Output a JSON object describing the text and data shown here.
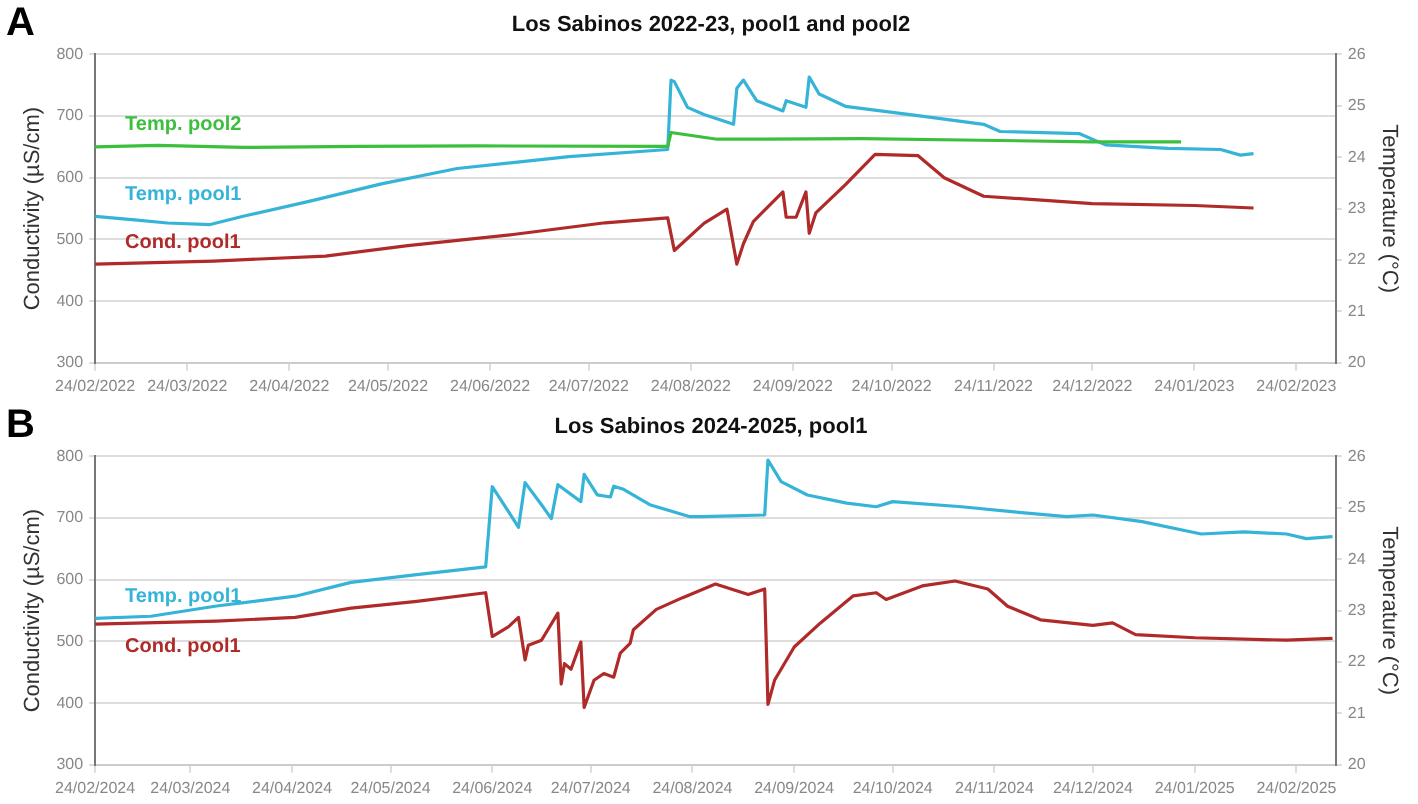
{
  "chart_data": [
    {
      "type": "line",
      "title": "Los Sabinos 2022-23, pool1 and pool2",
      "ylabel": "Conductivity (µS/cm)",
      "y2label": "Temperature (°C)",
      "annotations": [
        "A"
      ],
      "grid": "y",
      "marker": "none",
      "line_style": "solid",
      "xlim": [
        "2022-02-24",
        "2023-03-08"
      ],
      "xticks": [
        {
          "value": "2022-02-24",
          "label": "24/02/2022"
        },
        {
          "value": "2022-03-24",
          "label": "24/03/2022"
        },
        {
          "value": "2022-04-24",
          "label": "24/04/2022"
        },
        {
          "value": "2022-05-24",
          "label": "24/05/2022"
        },
        {
          "value": "2022-06-24",
          "label": "24/06/2022"
        },
        {
          "value": "2022-07-24",
          "label": "24/07/2022"
        },
        {
          "value": "2022-08-24",
          "label": "24/08/2022"
        },
        {
          "value": "2022-09-24",
          "label": "24/09/2022"
        },
        {
          "value": "2022-10-24",
          "label": "24/10/2022"
        },
        {
          "value": "2022-11-24",
          "label": "24/11/2022"
        },
        {
          "value": "2022-12-24",
          "label": "24/12/2022"
        },
        {
          "value": "2023-01-24",
          "label": "24/01/2023"
        },
        {
          "value": "2023-02-24",
          "label": "24/02/2023"
        }
      ],
      "ylim": [
        300,
        800
      ],
      "yticks": [
        300,
        400,
        500,
        600,
        700,
        800
      ],
      "y2lim": [
        20,
        26
      ],
      "y2ticks": [
        20,
        21,
        22,
        23,
        24,
        25,
        26
      ],
      "series": [
        {
          "name": "Temp. pool2",
          "color": "#3cbf3c",
          "axis": "y2",
          "x": [
            "2022-02-24",
            "2022-03-15",
            "2022-04-10",
            "2022-05-15",
            "2022-06-20",
            "2022-08-17",
            "2022-08-18",
            "2022-09-01",
            "2022-10-15",
            "2022-11-20",
            "2022-12-24",
            "2023-01-20"
          ],
          "values": [
            24.2,
            24.23,
            24.19,
            24.21,
            24.22,
            24.21,
            24.48,
            24.35,
            24.36,
            24.33,
            24.3,
            24.3
          ]
        },
        {
          "name": "Temp. pool1",
          "color": "#35b4d8",
          "axis": "y2",
          "x": [
            "2022-02-24",
            "2022-03-08",
            "2022-03-18",
            "2022-03-31",
            "2022-04-10",
            "2022-04-30",
            "2022-05-22",
            "2022-06-14",
            "2022-07-18",
            "2022-08-17",
            "2022-08-18",
            "2022-08-19",
            "2022-08-23",
            "2022-08-28",
            "2022-09-06",
            "2022-09-07",
            "2022-09-09",
            "2022-09-13",
            "2022-09-21",
            "2022-09-22",
            "2022-09-28",
            "2022-09-29",
            "2022-10-02",
            "2022-10-10",
            "2022-11-01",
            "2022-11-21",
            "2022-11-26",
            "2022-12-20",
            "2022-12-28",
            "2023-01-16",
            "2023-02-01",
            "2023-02-07",
            "2023-02-11"
          ],
          "values": [
            22.85,
            22.78,
            22.72,
            22.69,
            22.85,
            23.14,
            23.48,
            23.78,
            24.01,
            24.15,
            25.5,
            25.47,
            24.97,
            24.83,
            24.64,
            25.34,
            25.5,
            25.1,
            24.9,
            25.1,
            24.97,
            25.56,
            25.23,
            24.99,
            24.81,
            24.64,
            24.5,
            24.46,
            24.24,
            24.17,
            24.15,
            24.04,
            24.07
          ]
        },
        {
          "name": "Cond. pool1",
          "color": "#b02a2a",
          "axis": "y",
          "x": [
            "2022-02-24",
            "2022-04-01",
            "2022-05-05",
            "2022-05-30",
            "2022-07-01",
            "2022-07-29",
            "2022-08-17",
            "2022-08-19",
            "2022-08-28",
            "2022-09-04",
            "2022-09-07",
            "2022-09-09",
            "2022-09-12",
            "2022-09-21",
            "2022-09-22",
            "2022-09-25",
            "2022-09-28",
            "2022-09-29",
            "2022-10-01",
            "2022-10-10",
            "2022-10-19",
            "2022-11-01",
            "2022-11-09",
            "2022-11-21",
            "2022-12-24",
            "2023-01-24",
            "2023-02-11"
          ],
          "values": [
            460,
            465,
            473,
            490,
            508,
            527,
            535,
            482,
            526,
            549,
            460,
            493,
            529,
            577,
            536,
            536,
            577,
            510,
            543,
            589,
            638,
            636,
            600,
            570,
            558,
            555,
            551
          ]
        }
      ]
    },
    {
      "type": "line",
      "title": "Los Sabinos 2024-2025, pool1",
      "ylabel": "Conductivity (µS/cm)",
      "y2label": "Temperature (°C)",
      "annotations": [
        "B"
      ],
      "grid": "y",
      "marker": "none",
      "line_style": "solid",
      "xlim": [
        "2024-02-24",
        "2025-03-08"
      ],
      "xticks": [
        {
          "value": "2024-02-24",
          "label": "24/02/2024"
        },
        {
          "value": "2024-03-24",
          "label": "24/03/2024"
        },
        {
          "value": "2024-04-24",
          "label": "24/04/2024"
        },
        {
          "value": "2024-05-24",
          "label": "24/05/2024"
        },
        {
          "value": "2024-06-24",
          "label": "24/06/2024"
        },
        {
          "value": "2024-07-24",
          "label": "24/07/2024"
        },
        {
          "value": "2024-08-24",
          "label": "24/08/2024"
        },
        {
          "value": "2024-09-24",
          "label": "24/09/2024"
        },
        {
          "value": "2024-10-24",
          "label": "24/10/2024"
        },
        {
          "value": "2024-11-24",
          "label": "24/11/2024"
        },
        {
          "value": "2024-12-24",
          "label": "24/12/2024"
        },
        {
          "value": "2025-01-24",
          "label": "24/01/2025"
        },
        {
          "value": "2025-02-24",
          "label": "24/02/2025"
        }
      ],
      "ylim": [
        300,
        800
      ],
      "yticks": [
        300,
        400,
        500,
        600,
        700,
        800
      ],
      "y2lim": [
        20,
        26
      ],
      "y2ticks": [
        20,
        21,
        22,
        23,
        24,
        25,
        26
      ],
      "series": [
        {
          "name": "Temp. pool1",
          "color": "#35b4d8",
          "axis": "y2",
          "x": [
            "2024-02-24",
            "2024-03-12",
            "2024-04-01",
            "2024-04-25",
            "2024-05-12",
            "2024-06-01",
            "2024-06-22",
            "2024-06-24",
            "2024-06-29",
            "2024-07-02",
            "2024-07-04",
            "2024-07-09",
            "2024-07-12",
            "2024-07-14",
            "2024-07-21",
            "2024-07-22",
            "2024-07-26",
            "2024-07-30",
            "2024-07-31",
            "2024-08-03",
            "2024-08-11",
            "2024-08-23",
            "2024-08-27",
            "2024-09-15",
            "2024-09-16",
            "2024-09-20",
            "2024-09-28",
            "2024-10-10",
            "2024-10-19",
            "2024-10-24",
            "2024-11-14",
            "2024-11-30",
            "2024-12-16",
            "2024-12-24",
            "2025-01-08",
            "2025-01-26",
            "2025-02-08",
            "2025-02-21",
            "2025-02-27",
            "2025-03-07"
          ],
          "values": [
            22.85,
            22.89,
            23.09,
            23.28,
            23.55,
            23.7,
            23.85,
            25.41,
            24.92,
            24.62,
            25.49,
            25.06,
            24.79,
            25.45,
            25.12,
            25.65,
            25.25,
            25.21,
            25.42,
            25.36,
            25.06,
            24.83,
            24.83,
            24.86,
            25.93,
            25.51,
            25.25,
            25.09,
            25.02,
            25.12,
            25.02,
            24.92,
            24.83,
            24.86,
            24.73,
            24.49,
            24.53,
            24.49,
            24.4,
            24.44
          ]
        },
        {
          "name": "Cond. pool1",
          "color": "#b02a2a",
          "axis": "y",
          "x": [
            "2024-02-24",
            "2024-04-01",
            "2024-04-25",
            "2024-05-12",
            "2024-06-01",
            "2024-06-22",
            "2024-06-24",
            "2024-06-29",
            "2024-07-02",
            "2024-07-04",
            "2024-07-05",
            "2024-07-09",
            "2024-07-14",
            "2024-07-15",
            "2024-07-16",
            "2024-07-18",
            "2024-07-21",
            "2024-07-22",
            "2024-07-25",
            "2024-07-28",
            "2024-07-31",
            "2024-08-02",
            "2024-08-05",
            "2024-08-06",
            "2024-08-13",
            "2024-08-21",
            "2024-08-31",
            "2024-09-10",
            "2024-09-15",
            "2024-09-16",
            "2024-09-18",
            "2024-09-24",
            "2024-10-02",
            "2024-10-12",
            "2024-10-19",
            "2024-10-22",
            "2024-11-02",
            "2024-11-12",
            "2024-11-22",
            "2024-11-28",
            "2024-12-08",
            "2024-12-24",
            "2024-12-30",
            "2025-01-06",
            "2025-01-24",
            "2025-02-21",
            "2025-03-07"
          ],
          "values": [
            528,
            533,
            539,
            554,
            565,
            579,
            508,
            524,
            539,
            470,
            494,
            502,
            546,
            431,
            464,
            455,
            499,
            393,
            437,
            448,
            442,
            481,
            497,
            519,
            552,
            571,
            593,
            576,
            585,
            398,
            437,
            491,
            530,
            574,
            579,
            568,
            590,
            598,
            585,
            557,
            535,
            526,
            530,
            511,
            506,
            502,
            505
          ]
        }
      ]
    }
  ]
}
